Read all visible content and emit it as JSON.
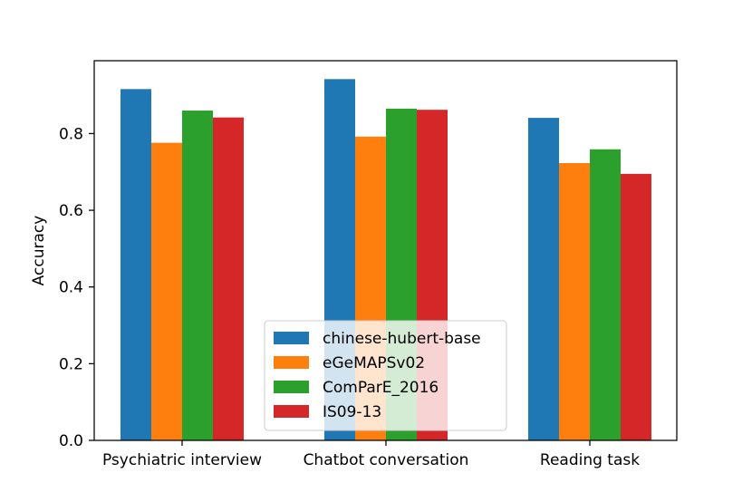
{
  "chart_data": {
    "type": "bar",
    "title": "",
    "xlabel": "",
    "ylabel": "Accuracy",
    "categories": [
      "Psychiatric interview",
      "Chatbot conversation",
      "Reading task"
    ],
    "series": [
      {
        "name": "chinese-hubert-base",
        "color": "#1f77b4",
        "values": [
          0.916,
          0.942,
          0.841
        ]
      },
      {
        "name": "eGeMAPSv02",
        "color": "#ff7f0e",
        "values": [
          0.776,
          0.792,
          0.723
        ]
      },
      {
        "name": "ComParE_2016",
        "color": "#2ca02c",
        "values": [
          0.86,
          0.865,
          0.759
        ]
      },
      {
        "name": "IS09-13",
        "color": "#d62728",
        "values": [
          0.842,
          0.862,
          0.695
        ]
      }
    ],
    "ylim": [
      0,
      0.99
    ],
    "yticks": [
      0.0,
      0.2,
      0.4,
      0.6,
      0.8
    ],
    "ytick_labels": [
      "0.0",
      "0.2",
      "0.4",
      "0.6",
      "0.8"
    ],
    "grid": false,
    "legend_position": "lower-center"
  }
}
